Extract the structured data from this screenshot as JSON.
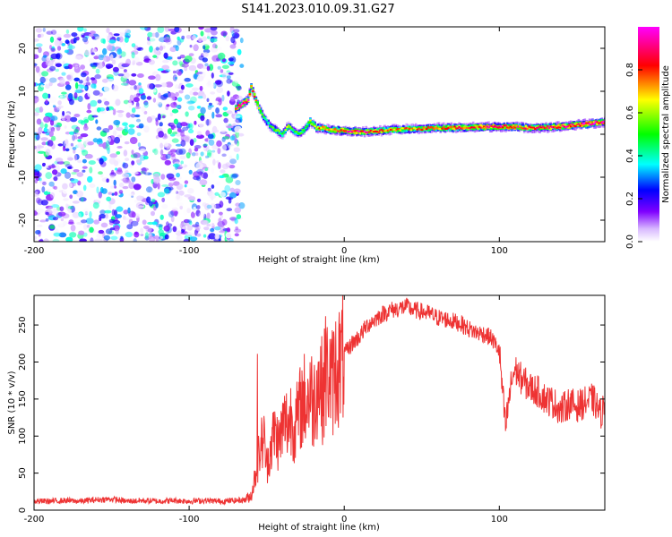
{
  "title": "S141.2023.010.09.31.G27",
  "chart_data": [
    {
      "type": "heatmap",
      "xlabel": "Height of straight line (km)",
      "ylabel": "Frequency (Hz)",
      "xlim": [
        -200,
        168
      ],
      "ylim": [
        -25,
        25
      ],
      "xticks": [
        "-200",
        "-100",
        "0",
        "100"
      ],
      "xtick_values": [
        -200,
        -100,
        0,
        100
      ],
      "yticks": [
        "-20",
        "-10",
        "0",
        "10",
        "20"
      ],
      "ytick_values": [
        -20,
        -10,
        0,
        10,
        20
      ],
      "grid": false,
      "colorbar": {
        "label": "Normalized spectral amplitude",
        "range": [
          0,
          1
        ],
        "ticks": [
          "0.0",
          "0.2",
          "0.4",
          "0.6",
          "0.8"
        ],
        "tick_values": [
          0.0,
          0.2,
          0.4,
          0.6,
          0.8
        ],
        "colors": [
          "#ffffff",
          "#7f00ff",
          "#0000ff",
          "#00ffff",
          "#00ff00",
          "#ffff00",
          "#ff0000",
          "#ff00ff"
        ]
      },
      "noise_region": {
        "x": [
          -200,
          -70
        ],
        "note_amplitude": [
          0.0,
          0.45
        ]
      },
      "ridge": {
        "x": [
          -70,
          -66,
          -62,
          -60,
          -58,
          -55,
          -52,
          -48,
          -44,
          -40,
          -36,
          -33,
          -30,
          -26,
          -22,
          -18,
          -14,
          -10,
          -5,
          0,
          10,
          20,
          30,
          40,
          50,
          60,
          70,
          80,
          90,
          100,
          110,
          120,
          130,
          140,
          150,
          160,
          168
        ],
        "y": [
          6,
          7,
          8,
          11,
          9,
          6,
          4,
          2,
          1,
          0,
          2,
          1,
          0,
          1,
          3,
          1.5,
          1.5,
          1,
          1,
          0.8,
          0.5,
          0.7,
          1,
          1.2,
          1.3,
          1.5,
          1.5,
          1.6,
          1.7,
          1.8,
          1.7,
          1.5,
          1.6,
          1.8,
          2.2,
          2.5,
          2.8
        ],
        "amplitude": [
          0.85,
          0.95,
          0.9,
          0.8,
          0.75,
          0.6,
          0.5,
          0.45,
          0.55,
          0.5,
          0.6,
          0.5,
          0.5,
          0.55,
          0.6,
          0.7,
          0.75,
          0.7,
          0.8,
          0.85,
          0.9,
          0.8,
          0.75,
          0.7,
          0.72,
          0.75,
          0.78,
          0.8,
          0.85,
          0.9,
          0.85,
          0.8,
          0.82,
          0.85,
          0.88,
          0.95,
          0.9
        ]
      }
    },
    {
      "type": "line",
      "xlabel": "Height of straight line (km)",
      "ylabel": "SNR (10 * v/v)",
      "xlim": [
        -200,
        168
      ],
      "ylim": [
        0,
        290
      ],
      "xticks": [
        "-200",
        "-100",
        "0",
        "100"
      ],
      "xtick_values": [
        -200,
        -100,
        0,
        100
      ],
      "yticks": [
        "0",
        "50",
        "100",
        "150",
        "200",
        "250"
      ],
      "ytick_values": [
        0,
        50,
        100,
        150,
        200,
        250
      ],
      "grid": false,
      "series": [
        {
          "color": "#ee3333",
          "x": [
            -200,
            -190,
            -180,
            -170,
            -160,
            -150,
            -140,
            -130,
            -120,
            -110,
            -100,
            -90,
            -80,
            -70,
            -64,
            -60,
            -58,
            -55,
            -52,
            -50,
            -48,
            -45,
            -42,
            -40,
            -38,
            -36,
            -34,
            -32,
            -30,
            -28,
            -26,
            -24,
            -22,
            -20,
            -18,
            -16,
            -14,
            -12,
            -10,
            -8,
            -6,
            -4,
            -2,
            0,
            5,
            10,
            15,
            20,
            25,
            30,
            35,
            40,
            45,
            50,
            55,
            60,
            65,
            70,
            75,
            80,
            85,
            90,
            95,
            100,
            102,
            104,
            106,
            108,
            110,
            115,
            120,
            125,
            130,
            135,
            140,
            145,
            150,
            155,
            160,
            163,
            165,
            168
          ],
          "y": [
            12,
            12,
            13,
            12,
            14,
            15,
            12,
            13,
            12,
            13,
            12,
            13,
            12,
            13,
            14,
            20,
            40,
            75,
            100,
            60,
            80,
            105,
            90,
            110,
            120,
            115,
            130,
            110,
            125,
            140,
            150,
            145,
            165,
            140,
            170,
            175,
            160,
            180,
            185,
            170,
            190,
            195,
            200,
            210,
            225,
            235,
            250,
            258,
            265,
            270,
            272,
            275,
            270,
            268,
            265,
            260,
            258,
            255,
            252,
            245,
            240,
            238,
            232,
            215,
            160,
            110,
            145,
            175,
            190,
            175,
            165,
            160,
            150,
            145,
            135,
            145,
            140,
            145,
            150,
            140,
            130,
            140
          ]
        }
      ],
      "annotations": [
        {
          "x": -56,
          "peak": 211
        },
        {
          "x": -12,
          "peak": 262
        }
      ]
    }
  ]
}
